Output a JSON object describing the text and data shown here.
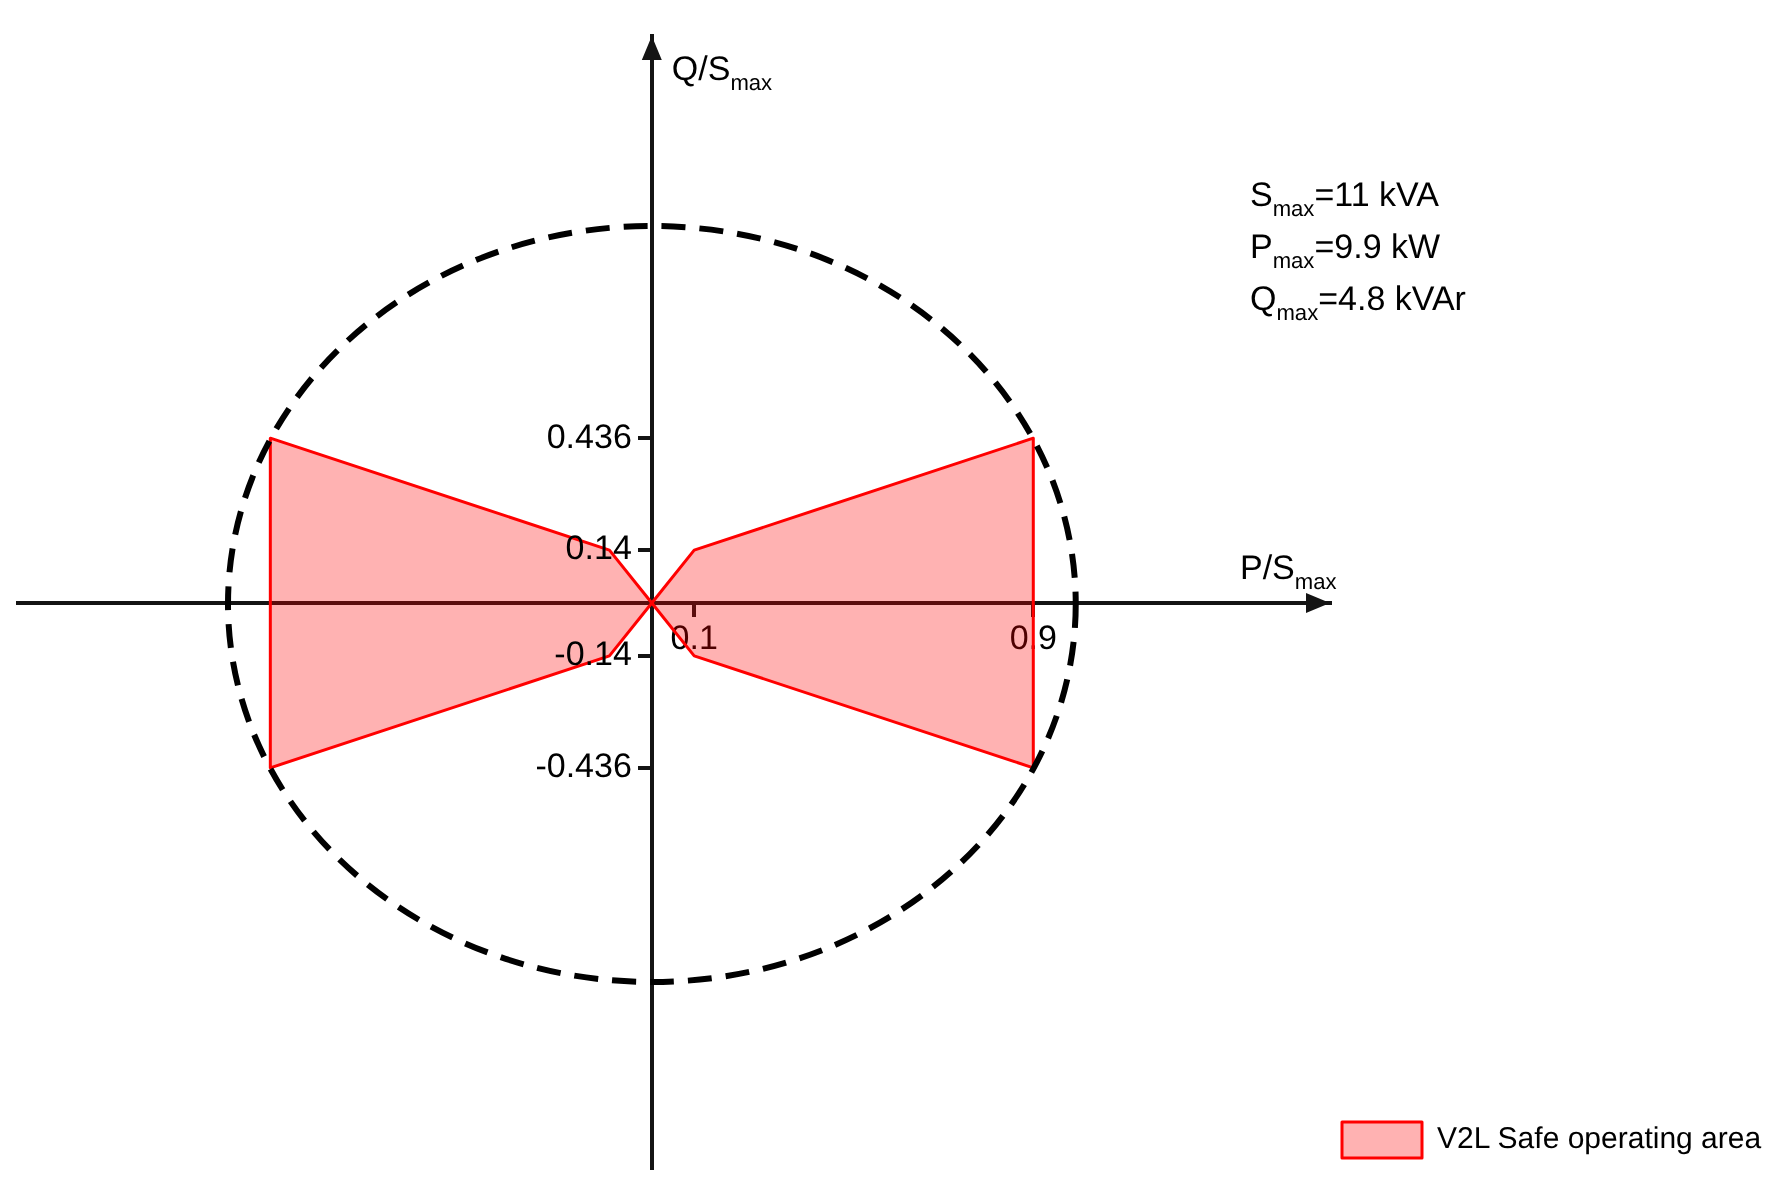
{
  "chart_data": {
    "type": "area",
    "xlabel": "P/S$_{max}$",
    "ylabel": "Q/S$_{max}$",
    "annotations": [
      "S$_{max}$=11 kVA",
      "P$_{max}$=9.9 kW",
      "Q$_{max}$=4.8 kVAr"
    ],
    "xlim": [
      -1.5,
      1.6
    ],
    "ylim": [
      -1.5,
      1.5
    ],
    "xticks": [
      0.1,
      0.9
    ],
    "yticks": [
      -0.436,
      -0.14,
      0.14,
      0.436
    ],
    "grid": false,
    "legend": "bottom right",
    "series": [
      {
        "name": "V2L Safe operating area",
        "type": "area",
        "color": "#ff0000",
        "x": [
          0,
          0.1,
          0.9,
          0.9,
          0.1,
          0,
          -0.1,
          -0.9,
          -0.9,
          -0.1,
          0
        ],
        "values": [
          0,
          0.14,
          0.436,
          -0.436,
          -0.14,
          0,
          -0.14,
          -0.436,
          0.436,
          0.14,
          0
        ]
      }
    ]
  }
}
